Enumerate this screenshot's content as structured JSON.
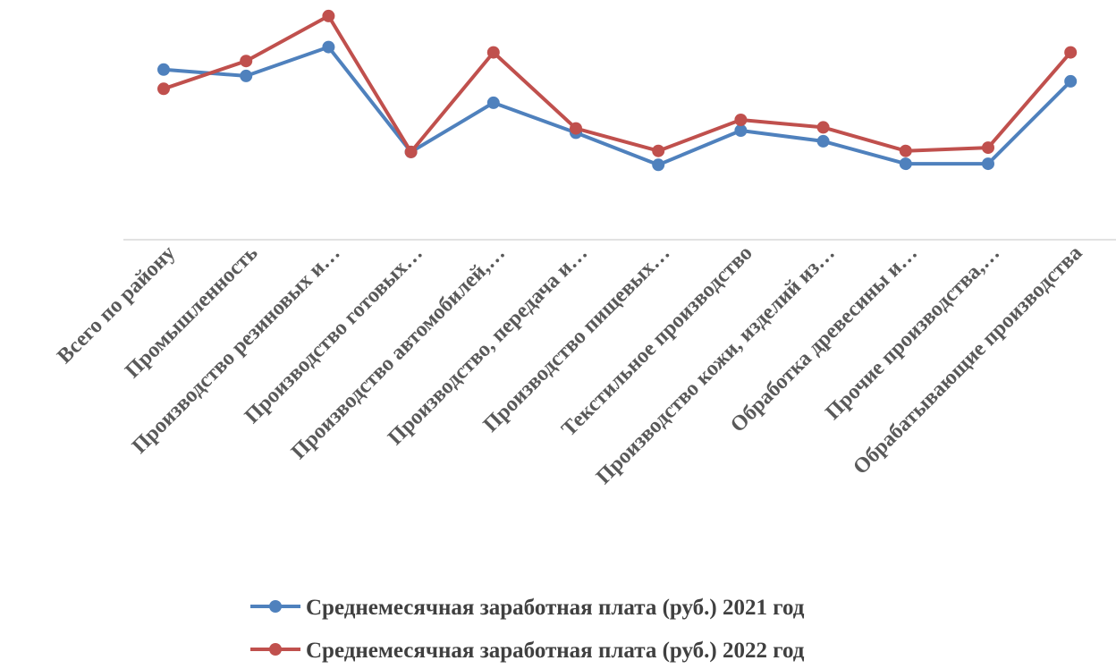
{
  "chart_data": {
    "type": "line",
    "title": "",
    "xlabel": "",
    "ylabel": "",
    "categories": [
      "Всего по району",
      "Промышленность",
      "Производство резиновых и…",
      "Производство готовых…",
      "Производство автомобилей,…",
      "Производство, передача и…",
      "Производство пищевых…",
      "Текстильное производство",
      "Производство кожи, изделий из…",
      "Обработка древесины и…",
      "Прочие производства,…",
      "Обрабатывающие производства"
    ],
    "series": [
      {
        "name": "Среднемесячная  заработная плата (руб.) 2021 год",
        "color": "#4f81bd",
        "values": [
          79.5,
          76.5,
          90.0,
          41.0,
          64.0,
          50.0,
          35.0,
          51.0,
          46.0,
          35.5,
          35.5,
          74.0
        ]
      },
      {
        "name": "Среднемесячная  заработная плата (руб.) 2022 год",
        "color": "#c0504d",
        "values": [
          70.5,
          83.5,
          104.5,
          41.0,
          87.5,
          52.0,
          41.5,
          56.0,
          52.5,
          41.5,
          43.0,
          87.5
        ]
      }
    ],
    "ylim": [
      0,
      112
    ],
    "grid": false,
    "y_axis_visible": false,
    "legend_placement": "bottom"
  }
}
